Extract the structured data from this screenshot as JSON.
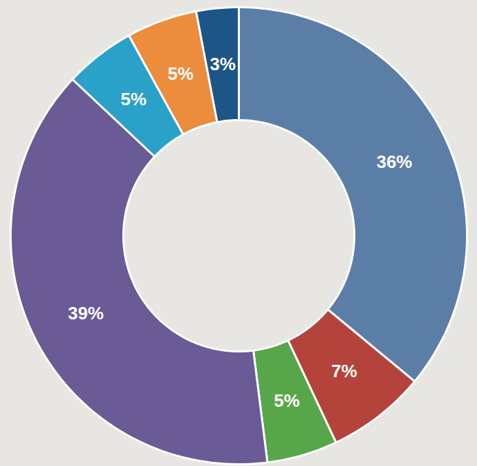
{
  "chart_data": {
    "type": "donut",
    "values": [
      36,
      7,
      5,
      39,
      5,
      5,
      3
    ],
    "value_labels": [
      "36%",
      "7%",
      "5%",
      "39%",
      "5%",
      "5%",
      "3%"
    ],
    "colors": [
      "#5b7ea6",
      "#b4443b",
      "#58a64a",
      "#6a5a96",
      "#2aa1c8",
      "#ec8c3d",
      "#1d5587"
    ],
    "data_labels": true
  }
}
